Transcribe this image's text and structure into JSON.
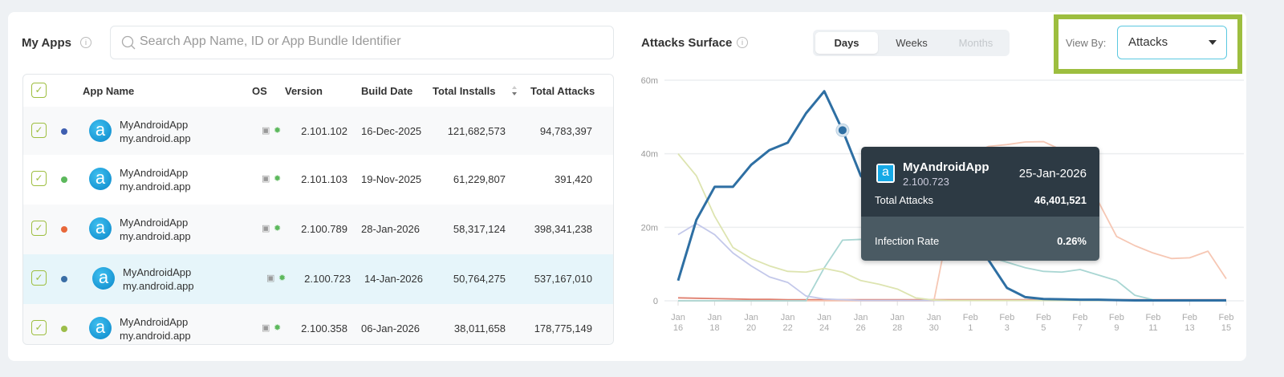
{
  "apps": {
    "title": "My Apps",
    "search_placeholder": "Search App Name, ID or App Bundle Identifier",
    "columns": [
      "App Name",
      "OS",
      "Version",
      "Build Date",
      "Total Installs",
      "Total Attacks"
    ],
    "rows": [
      {
        "name": "MyAndroidApp",
        "bundle": "my.android.app",
        "version": "2.101.102",
        "build_date": "16-Dec-2025",
        "installs": "121,682,573",
        "attacks": "94,783,397",
        "color": "#3f5fb0",
        "checked": true
      },
      {
        "name": "MyAndroidApp",
        "bundle": "my.android.app",
        "version": "2.101.103",
        "build_date": "19-Nov-2025",
        "installs": "61,229,807",
        "attacks": "391,420",
        "color": "#5cb85c",
        "checked": true
      },
      {
        "name": "MyAndroidApp",
        "bundle": "my.android.app",
        "version": "2.100.789",
        "build_date": "28-Jan-2026",
        "installs": "58,317,124",
        "attacks": "398,341,238",
        "color": "#e8683a",
        "checked": true
      },
      {
        "name": "MyAndroidApp",
        "bundle": "my.android.app",
        "version": "2.100.723",
        "build_date": "14-Jan-2026",
        "installs": "50,764,275",
        "attacks": "537,167,010",
        "color": "#3a6ea5",
        "checked": true,
        "highlighted": true
      },
      {
        "name": "MyAndroidApp",
        "bundle": "my.android.app",
        "version": "2.100.358",
        "build_date": "06-Jan-2026",
        "installs": "38,011,658",
        "attacks": "178,775,149",
        "color": "#9cbd4a",
        "checked": true
      }
    ]
  },
  "chart": {
    "title": "Attacks Surface",
    "tabs": [
      "Days",
      "Weeks",
      "Months"
    ],
    "active_tab": "Days",
    "view_by_label": "View By:",
    "view_by_value": "Attacks",
    "tooltip": {
      "app": "MyAndroidApp",
      "version": "2.100.723",
      "date": "25-Jan-2026",
      "total_attacks_label": "Total Attacks",
      "total_attacks": "46,401,521",
      "infection_rate_label": "Infection Rate",
      "infection_rate": "0.26%"
    }
  },
  "chart_data": {
    "type": "line",
    "ylim": [
      0,
      60
    ],
    "yticks": [
      "0",
      "20m",
      "40m",
      "60m"
    ],
    "ytick_values": [
      0,
      20,
      40,
      60
    ],
    "x": [
      "Jan 16",
      "Jan 17",
      "Jan 18",
      "Jan 19",
      "Jan 20",
      "Jan 21",
      "Jan 22",
      "Jan 23",
      "Jan 24",
      "Jan 25",
      "Jan 26",
      "Jan 27",
      "Jan 28",
      "Jan 29",
      "Jan 30",
      "Jan 31",
      "Feb 1",
      "Feb 2",
      "Feb 3",
      "Feb 4",
      "Feb 5",
      "Feb 6",
      "Feb 7",
      "Feb 8",
      "Feb 9",
      "Feb 10",
      "Feb 11",
      "Feb 12",
      "Feb 13",
      "Feb 14",
      "Feb 15"
    ],
    "xtick_labels": [
      [
        "Jan",
        "16"
      ],
      [
        "Jan",
        "18"
      ],
      [
        "Jan",
        "20"
      ],
      [
        "Jan",
        "22"
      ],
      [
        "Jan",
        "24"
      ],
      [
        "Jan",
        "26"
      ],
      [
        "Jan",
        "28"
      ],
      [
        "Jan",
        "30"
      ],
      [
        "Feb",
        "1"
      ],
      [
        "Feb",
        "3"
      ],
      [
        "Feb",
        "5"
      ],
      [
        "Feb",
        "7"
      ],
      [
        "Feb",
        "9"
      ],
      [
        "Feb",
        "11"
      ],
      [
        "Feb",
        "13"
      ],
      [
        "Feb",
        "15"
      ]
    ],
    "grid": true,
    "highlight": {
      "series": 0,
      "x": "Jan 25",
      "y": 46.4
    },
    "series": [
      {
        "color": "#2e6fa3",
        "values": [
          5.5,
          22,
          31,
          31,
          37,
          41,
          43,
          51,
          57,
          46.4,
          34,
          29,
          25,
          22,
          20,
          18,
          16,
          11,
          3.5,
          1,
          0.5,
          0.4,
          0.3,
          0.3,
          0.2,
          0.1,
          0.1,
          0.1,
          0.1,
          0.1,
          0.1
        ]
      },
      {
        "color": "#dde4b0",
        "values": [
          40,
          34,
          23,
          14.5,
          11.5,
          9.5,
          8,
          7.8,
          8.8,
          7.8,
          5.5,
          4.5,
          3.2,
          0.8,
          0.2,
          0.1,
          0.1,
          0.1,
          0.1,
          0.1,
          0.1,
          0.1,
          0.1,
          0.1,
          0.1,
          0.1,
          0.1,
          0.1,
          0.1,
          0.1,
          0.1
        ]
      },
      {
        "color": "#c3c8ea",
        "values": [
          18,
          21,
          18,
          13,
          9.5,
          6.5,
          5,
          1.3,
          0.5,
          0.3,
          0.1,
          0.1,
          0.1,
          0.1,
          0.1,
          0.1,
          0.1,
          0.1,
          0.1,
          0.1,
          0.1,
          0.1,
          0.1,
          0.1,
          0.1,
          0.1,
          0.1,
          0.1,
          0.1,
          0.1,
          0.1
        ]
      },
      {
        "color": "#a9d6d3",
        "values": [
          0,
          0,
          0,
          0,
          0,
          0,
          0,
          0,
          9,
          16.5,
          16.7,
          17,
          17.5,
          17,
          16,
          15,
          14,
          12,
          10.5,
          9,
          8,
          7.8,
          8.5,
          7,
          5.5,
          1.5,
          0.3,
          0.1,
          0.1,
          0.1,
          0.1
        ]
      },
      {
        "color": "#f6c7b4",
        "values": [
          0,
          0,
          0,
          0,
          0,
          0,
          0,
          0,
          0,
          0,
          0,
          0,
          0,
          0,
          0,
          25,
          40,
          42,
          42.5,
          43.2,
          43.3,
          41,
          36,
          27,
          17.5,
          15,
          13,
          11.5,
          11.7,
          13.5,
          6
        ]
      },
      {
        "color": "#e08070",
        "values": [
          0.8,
          0.7,
          0.6,
          0.5,
          0.4,
          0.4,
          0.3,
          0.3,
          0.3,
          0.3,
          0.3,
          0.3,
          0.3,
          0.3,
          0.3,
          0.3,
          0.3,
          0.3,
          0.3,
          0.3,
          0.3,
          0.3,
          0.3,
          0.3,
          0.3,
          0.3,
          0.3,
          0.3,
          0.3,
          0.3,
          0.3
        ]
      }
    ]
  }
}
